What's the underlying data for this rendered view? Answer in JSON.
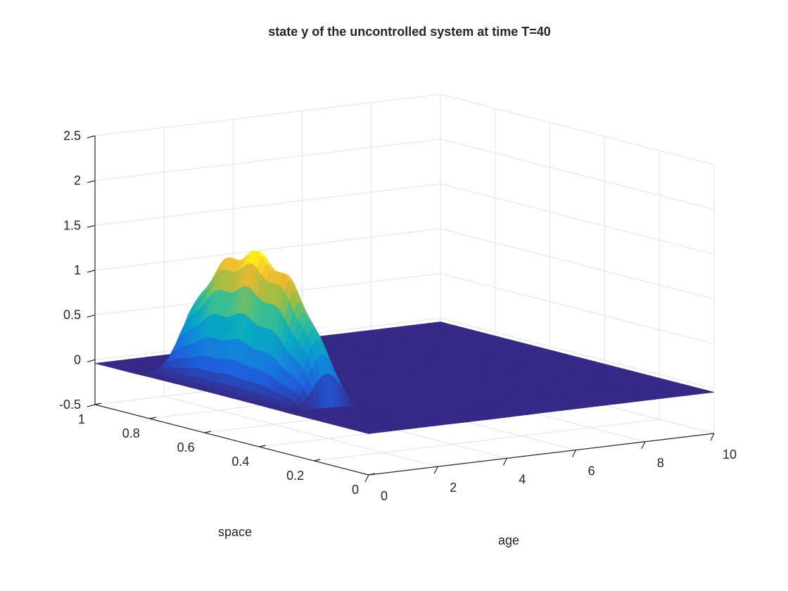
{
  "chart_data": {
    "type": "surface",
    "title": "state y of the uncontrolled system at time T=40",
    "xlabel": "age",
    "ylabel": "space",
    "zlabel": "",
    "xlim": [
      0,
      10
    ],
    "ylim": [
      0,
      1
    ],
    "zlim": [
      -0.5,
      2.5
    ],
    "x_ticks": [
      0,
      2,
      4,
      6,
      8,
      10
    ],
    "y_ticks": [
      0,
      0.2,
      0.4,
      0.6,
      0.8,
      1
    ],
    "z_ticks": [
      -0.5,
      0,
      0.5,
      1,
      1.5,
      2,
      2.5
    ],
    "x_tick_labels": [
      "0",
      "2",
      "4",
      "6",
      "8",
      "10"
    ],
    "y_tick_labels": [
      "0",
      "0.2",
      "0.4",
      "0.6",
      "0.8",
      "1"
    ],
    "z_tick_labels": [
      "-0.5",
      "0",
      "0.5",
      "1",
      "1.5",
      "2",
      "2.5"
    ],
    "grid": true,
    "colormap": "parula",
    "surface": {
      "baseline_z": -0.04,
      "features": [
        {
          "kind": "ridge",
          "x_center": 1.3,
          "x_width": 0.55,
          "y_range": [
            0.3,
            0.85
          ],
          "peak_z": 1.45
        },
        {
          "kind": "depression",
          "x_center": 3.5,
          "y_center": 0.28,
          "depth": -0.12
        }
      ]
    }
  }
}
